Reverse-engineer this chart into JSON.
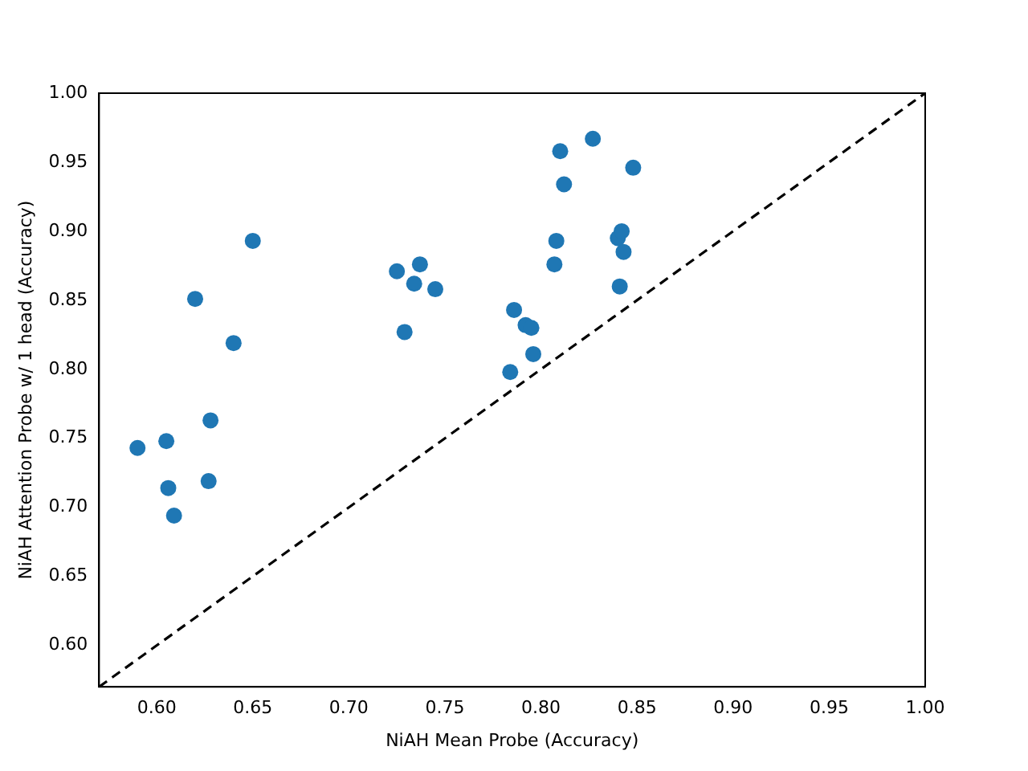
{
  "chart_data": {
    "type": "scatter",
    "xlabel": "NiAH Mean Probe (Accuracy)",
    "ylabel": "NiAH Attention Probe w/ 1 head (Accuracy)",
    "xlim": [
      0.57,
      1.0
    ],
    "ylim": [
      0.57,
      1.0
    ],
    "xticks": [
      {
        "value": 0.6,
        "label": "0.60"
      },
      {
        "value": 0.65,
        "label": "0.65"
      },
      {
        "value": 0.7,
        "label": "0.70"
      },
      {
        "value": 0.75,
        "label": "0.75"
      },
      {
        "value": 0.8,
        "label": "0.80"
      },
      {
        "value": 0.85,
        "label": "0.85"
      },
      {
        "value": 0.9,
        "label": "0.90"
      },
      {
        "value": 0.95,
        "label": "0.95"
      },
      {
        "value": 1.0,
        "label": "1.00"
      }
    ],
    "yticks": [
      {
        "value": 0.6,
        "label": "0.60"
      },
      {
        "value": 0.65,
        "label": "0.65"
      },
      {
        "value": 0.7,
        "label": "0.70"
      },
      {
        "value": 0.75,
        "label": "0.75"
      },
      {
        "value": 0.8,
        "label": "0.80"
      },
      {
        "value": 0.85,
        "label": "0.85"
      },
      {
        "value": 0.9,
        "label": "0.90"
      },
      {
        "value": 0.95,
        "label": "0.95"
      },
      {
        "value": 1.0,
        "label": "1.00"
      }
    ],
    "grid": false,
    "legend": false,
    "series": [
      {
        "color": "#1f77b4",
        "marker": "circle",
        "x": [
          0.59,
          0.605,
          0.606,
          0.609,
          0.62,
          0.628,
          0.627,
          0.64,
          0.65,
          0.725,
          0.729,
          0.734,
          0.737,
          0.745,
          0.784,
          0.786,
          0.792,
          0.795,
          0.796,
          0.807,
          0.808,
          0.81,
          0.812,
          0.827,
          0.84,
          0.842,
          0.841,
          0.843,
          0.848
        ],
        "values": [
          0.743,
          0.748,
          0.714,
          0.694,
          0.851,
          0.763,
          0.719,
          0.819,
          0.893,
          0.871,
          0.827,
          0.862,
          0.876,
          0.858,
          0.798,
          0.843,
          0.832,
          0.83,
          0.811,
          0.876,
          0.893,
          0.958,
          0.934,
          0.967,
          0.895,
          0.9,
          0.86,
          0.885,
          0.946
        ]
      },
      {
        "type": "line",
        "color": "#000000",
        "marker": "none",
        "line_style": "dashed",
        "x": [
          0.57,
          1.0
        ],
        "values": [
          0.57,
          1.0
        ]
      }
    ]
  }
}
